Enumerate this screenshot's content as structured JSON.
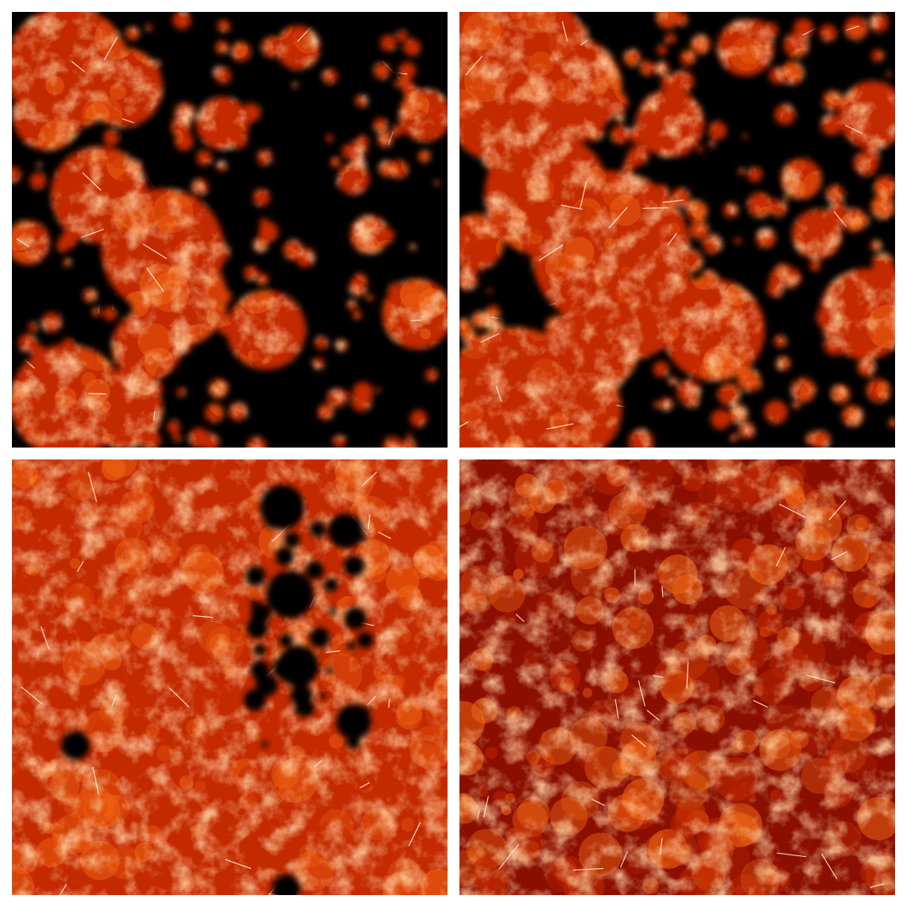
{
  "figure": {
    "panels": [
      {
        "id": "top-left",
        "ionized_fraction": 0.35
      },
      {
        "id": "top-right",
        "ionized_fraction": 0.55
      },
      {
        "id": "bottom-left",
        "ionized_fraction": 0.88
      },
      {
        "id": "bottom-right",
        "ionized_fraction": 1.0
      }
    ],
    "colors": {
      "background": "#ffffff",
      "neutral": "#000000",
      "dark_red": "#8a0f00",
      "red": "#c42a00",
      "orange": "#f06414",
      "light_orange": "#ffb070",
      "white_hot": "#fff3e0"
    }
  }
}
